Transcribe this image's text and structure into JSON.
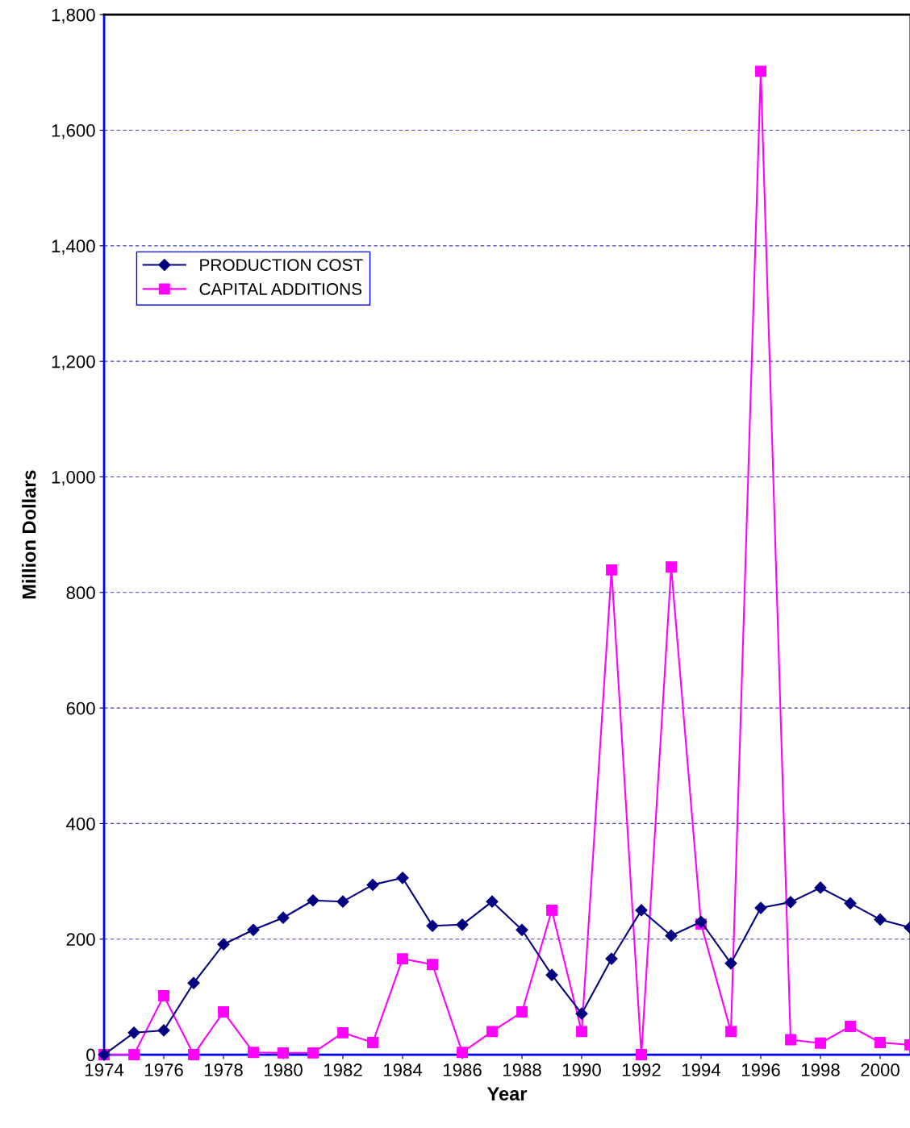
{
  "chart_data": {
    "type": "line",
    "xlabel": "Year",
    "ylabel": "Million Dollars",
    "x": [
      1974,
      1975,
      1976,
      1977,
      1978,
      1979,
      1980,
      1981,
      1982,
      1983,
      1984,
      1985,
      1986,
      1987,
      1988,
      1989,
      1990,
      1991,
      1992,
      1993,
      1994,
      1995,
      1996,
      1997,
      1998,
      1999,
      2000,
      2001
    ],
    "series": [
      {
        "name": "PRODUCTION COST",
        "color": "#000080",
        "marker": "diamond",
        "values": [
          0,
          38,
          42,
          124,
          191,
          216,
          237,
          267,
          265,
          294,
          306,
          223,
          225,
          265,
          216,
          138,
          71,
          166,
          250,
          206,
          230,
          158,
          254,
          264,
          289,
          262,
          234,
          220
        ]
      },
      {
        "name": "CAPITAL ADDITIONS",
        "color": "#ff00ff",
        "marker": "square",
        "values": [
          0,
          0,
          102,
          0,
          74,
          4,
          3,
          3,
          38,
          21,
          166,
          156,
          4,
          40,
          74,
          250,
          40,
          839,
          0,
          844,
          226,
          40,
          1702,
          26,
          20,
          49,
          21,
          17
        ]
      }
    ],
    "xlim": [
      1974,
      2001
    ],
    "xticks": [
      1974,
      1976,
      1978,
      1980,
      1982,
      1984,
      1986,
      1988,
      1990,
      1992,
      1994,
      1996,
      1998,
      2000
    ],
    "ylim": [
      0,
      1800
    ],
    "yticks": [
      {
        "value": 0,
        "label": "0"
      },
      {
        "value": 200,
        "label": "200"
      },
      {
        "value": 400,
        "label": "400"
      },
      {
        "value": 600,
        "label": "600"
      },
      {
        "value": 800,
        "label": "800"
      },
      {
        "value": 1000,
        "label": "1,000"
      },
      {
        "value": 1200,
        "label": "1,200"
      },
      {
        "value": 1400,
        "label": "1,400"
      },
      {
        "value": 1600,
        "label": "1,600"
      },
      {
        "value": 1800,
        "label": "1,800"
      }
    ],
    "grid": "y",
    "legend": "top left",
    "line_style": "solid"
  }
}
